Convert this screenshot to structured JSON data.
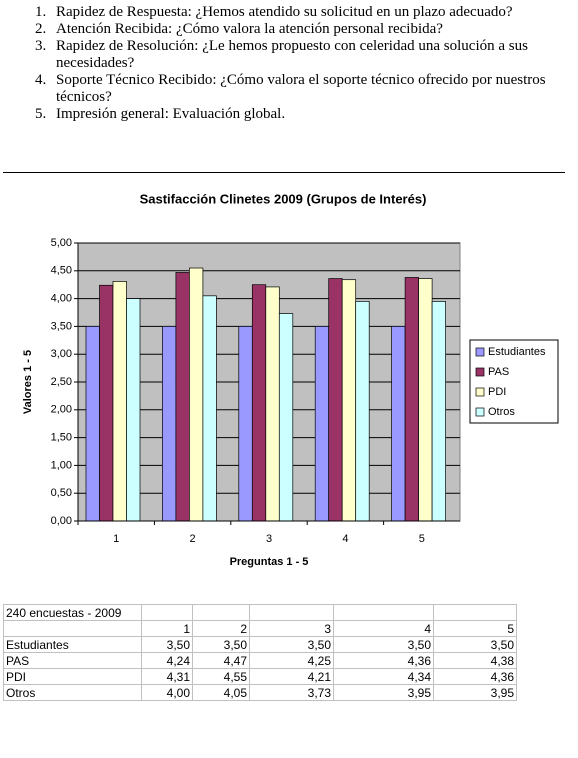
{
  "list": [
    "Rapidez de Respuesta: ¿Hemos atendido su solicitud en un plazo adecuado?",
    "Atención Recibida: ¿Cómo valora la atención personal recibida?",
    "Rapidez de Resolución: ¿Le hemos propuesto con celeridad una solución a sus necesidades?",
    "Soporte Técnico Recibido: ¿Cómo valora el soporte técnico ofrecido por nuestros técnicos?",
    "Impresión general: Evaluación global."
  ],
  "chart_data": {
    "type": "bar",
    "title": "Sastifacción Clinetes 2009 (Grupos de Interés)",
    "x_label": "Preguntas 1 - 5",
    "y_label": "Valores 1 - 5",
    "categories": [
      "1",
      "2",
      "3",
      "4",
      "5"
    ],
    "series": [
      {
        "name": "Estudiantes",
        "color": "#9999ff",
        "values": [
          3.5,
          3.5,
          3.5,
          3.5,
          3.5
        ]
      },
      {
        "name": "PAS",
        "color": "#993366",
        "values": [
          4.24,
          4.47,
          4.25,
          4.36,
          4.38
        ]
      },
      {
        "name": "PDI",
        "color": "#ffffcc",
        "values": [
          4.31,
          4.55,
          4.21,
          4.34,
          4.36
        ]
      },
      {
        "name": "Otros",
        "color": "#ccffff",
        "values": [
          4.0,
          4.05,
          3.73,
          3.95,
          3.95
        ]
      }
    ],
    "ylim": [
      0,
      5
    ],
    "yticks": [
      {
        "value": 0,
        "label": "0,00"
      },
      {
        "value": 0.5,
        "label": "0,50"
      },
      {
        "value": 1,
        "label": "1,00"
      },
      {
        "value": 1.5,
        "label": "1,50"
      },
      {
        "value": 2,
        "label": "2,00"
      },
      {
        "value": 2.5,
        "label": "2,50"
      },
      {
        "value": 3,
        "label": "3,00"
      },
      {
        "value": 3.5,
        "label": "3,50"
      },
      {
        "value": 4,
        "label": "4,00"
      },
      {
        "value": 4.5,
        "label": "4,50"
      },
      {
        "value": 5,
        "label": "5,00"
      }
    ],
    "grid": true,
    "legend": "right",
    "background": "#c0c0c0"
  },
  "table": {
    "caption": "240 encuestas - 2009",
    "header": [
      "1",
      "2",
      "3",
      "4",
      "5"
    ],
    "rows": [
      [
        "Estudiantes",
        "3,50",
        "3,50",
        "3,50",
        "3,50",
        "3,50"
      ],
      [
        "PAS",
        "4,24",
        "4,47",
        "4,25",
        "4,36",
        "4,38"
      ],
      [
        "PDI",
        "4,31",
        "4,55",
        "4,21",
        "4,34",
        "4,36"
      ],
      [
        "Otros",
        "4,00",
        "4,05",
        "3,73",
        "3,95",
        "3,95"
      ]
    ]
  }
}
